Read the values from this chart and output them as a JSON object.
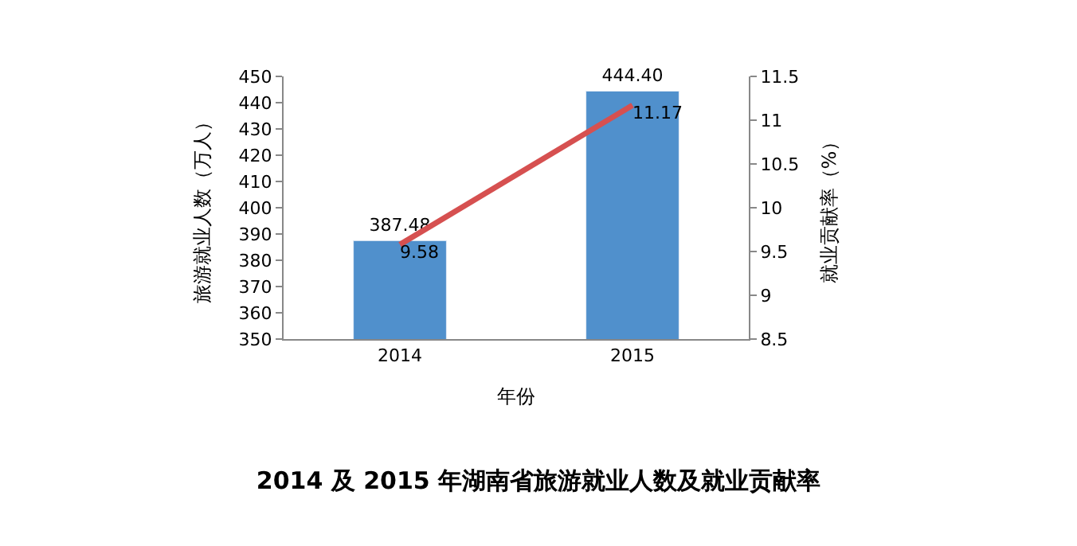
{
  "chart_data": {
    "type": "bar",
    "title": "2014 及 2015 年湖南省旅游就业人数及就业贡献率",
    "xlabel": "年份",
    "ylabel": "旅游就业人数（万人）",
    "y2label": "就业贡献率（%）",
    "categories": [
      "2014",
      "2015"
    ],
    "series": [
      {
        "color": "#5090cc",
        "values": [
          387.48,
          444.4
        ],
        "value_labels": [
          "387.48",
          "444.40"
        ]
      },
      {
        "type": "line",
        "axis": "y2",
        "color": "#d65050",
        "values": [
          9.58,
          11.17
        ],
        "value_labels": [
          "9.58",
          "11.17"
        ]
      }
    ],
    "ylim": [
      350,
      450
    ],
    "yticks": [
      350,
      360,
      370,
      380,
      390,
      400,
      410,
      420,
      430,
      440,
      450
    ],
    "y2lim": [
      8.5,
      11.5
    ],
    "y2ticks": [
      8.5,
      9,
      9.5,
      10,
      10.5,
      11,
      11.5
    ]
  }
}
